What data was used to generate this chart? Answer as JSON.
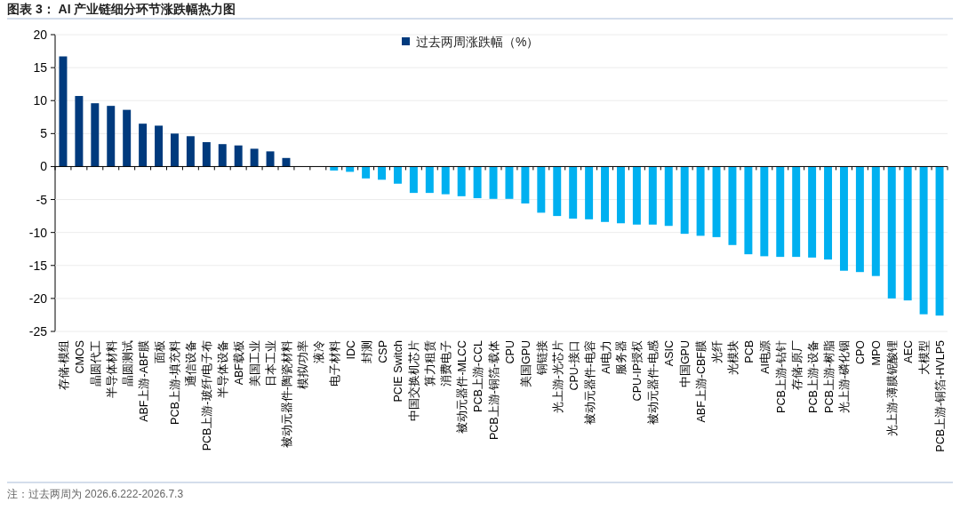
{
  "chart_data": {
    "type": "bar",
    "title": "图表 3：  AI 产业链细分环节涨跌幅热力图",
    "categories": [
      "存储-模组",
      "CMOS",
      "晶圆代工",
      "半导体材料",
      "晶圆测试",
      "ABF上游-ABF膜",
      "面板",
      "PCB上游-填充料",
      "通信设备",
      "PCB上游-玻纤/电子布",
      "半导体设备",
      "ABF载板",
      "美国工业",
      "日本工业",
      "被动元器件-陶瓷材料",
      "模拟/功率",
      "液冷",
      "电子材料",
      "IDC",
      "封测",
      "CSP",
      "PCIE Switch",
      "中国交换机芯片",
      "算力租赁",
      "消费电子",
      "被动元器件-MLCC",
      "PCB上游-CCL",
      "PCB上游-铜箔-载体",
      "CPU",
      "美国GPU",
      "铜链接",
      "光上游-光芯片",
      "CPU-接口",
      "被动元器件-电容",
      "AI电力",
      "服务器",
      "CPU-IP授权",
      "被动元器件-电感",
      "ASIC",
      "中国GPU",
      "ABF上游-CBF膜",
      "光纤",
      "光模块",
      "PCB",
      "AI电源",
      "PCB上游-钻针",
      "存储-原厂",
      "PCB上游-设备",
      "PCB上游-树脂",
      "光上游-磷化铟",
      "CPO",
      "MPO",
      "光上游-薄膜铌酸锂",
      "AEC",
      "大模型",
      "PCB上游-铜箔-HVLP5"
    ],
    "series": [
      {
        "name": "过去两周涨跌幅（%）",
        "color": "#003a7d",
        "values": [
          16.7,
          10.7,
          9.6,
          9.2,
          8.6,
          6.5,
          6.2,
          5.0,
          4.6,
          3.7,
          3.4,
          3.2,
          2.7,
          2.3,
          1.3,
          0,
          0,
          -0.6,
          -0.8,
          -1.8,
          -2.0,
          -2.6,
          -4.0,
          -4.0,
          -4.2,
          -4.5,
          -4.8,
          -4.9,
          -4.9,
          -5.6,
          -7.0,
          -7.5,
          -7.9,
          -8.0,
          -8.4,
          -8.6,
          -8.8,
          -8.8,
          -9.0,
          -10.2,
          -10.5,
          -10.7,
          -11.9,
          -13.3,
          -13.6,
          -13.7,
          -13.7,
          -13.8,
          -14.1,
          -15.8,
          -16.0,
          -16.6,
          -20.0,
          -20.3,
          -22.4,
          -22.6
        ],
        "colors": [
          "#003a7d",
          "#003a7d",
          "#003a7d",
          "#003a7d",
          "#003a7d",
          "#003a7d",
          "#003a7d",
          "#003a7d",
          "#003a7d",
          "#003a7d",
          "#003a7d",
          "#003a7d",
          "#003a7d",
          "#003a7d",
          "#003a7d",
          "#00b0f0",
          "#00b0f0",
          "#00b0f0",
          "#00b0f0",
          "#00b0f0",
          "#00b0f0",
          "#00b0f0",
          "#00b0f0",
          "#00b0f0",
          "#00b0f0",
          "#00b0f0",
          "#00b0f0",
          "#00b0f0",
          "#00b0f0",
          "#00b0f0",
          "#00b0f0",
          "#00b0f0",
          "#00b0f0",
          "#00b0f0",
          "#00b0f0",
          "#00b0f0",
          "#00b0f0",
          "#00b0f0",
          "#00b0f0",
          "#00b0f0",
          "#00b0f0",
          "#00b0f0",
          "#00b0f0",
          "#00b0f0",
          "#00b0f0",
          "#00b0f0",
          "#00b0f0",
          "#00b0f0",
          "#00b0f0",
          "#00b0f0",
          "#00b0f0",
          "#00b0f0",
          "#00b0f0",
          "#00b0f0",
          "#00b0f0",
          "#00b0f0"
        ]
      }
    ],
    "ylim": [
      -25,
      20
    ],
    "yticks": [
      -25,
      -20,
      -15,
      -10,
      -5,
      0,
      5,
      10,
      15,
      20
    ],
    "legend": "top",
    "grid": "y",
    "annotations": [
      "注：过去两周为 2026.6.222-2026.7.3"
    ]
  }
}
